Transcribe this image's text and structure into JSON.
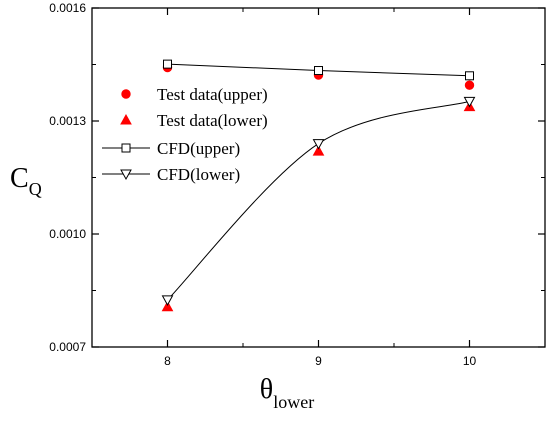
{
  "chart_data": {
    "type": "line",
    "title": "",
    "x": [
      8,
      9,
      10
    ],
    "x_ticks": [
      "8",
      "9",
      "10"
    ],
    "xlim": [
      7.5,
      10.5
    ],
    "xlabel": {
      "main": "θ",
      "sub": "lower"
    },
    "ylabel": {
      "main": "C",
      "sub": "Q"
    },
    "ylim": [
      0.0007,
      0.0016
    ],
    "y_ticks": [
      0.0007,
      0.001,
      0.0013,
      0.0016
    ],
    "y_tick_labels": [
      "0.0007",
      "0.0010",
      "0.0013",
      "0.0016"
    ],
    "grid": false,
    "legend_position": "upper-left",
    "series": [
      {
        "name": "Test data(upper)",
        "style": "scatter",
        "marker": "circle",
        "color": "#ff0000",
        "y": [
          0.001442,
          0.001422,
          0.001395
        ]
      },
      {
        "name": "Test data(lower)",
        "style": "scatter",
        "marker": "triangle-up",
        "color": "#ff0000",
        "y": [
          0.000807,
          0.00122,
          0.001338
        ]
      },
      {
        "name": "CFD(upper)",
        "style": "line",
        "marker": "square-open",
        "color": "#000000",
        "y": [
          0.001451,
          0.001434,
          0.00142
        ]
      },
      {
        "name": "CFD(lower)",
        "style": "smooth-line",
        "marker": "triangle-down-open",
        "color": "#000000",
        "y": [
          0.000825,
          0.00124,
          0.001352
        ]
      }
    ]
  }
}
